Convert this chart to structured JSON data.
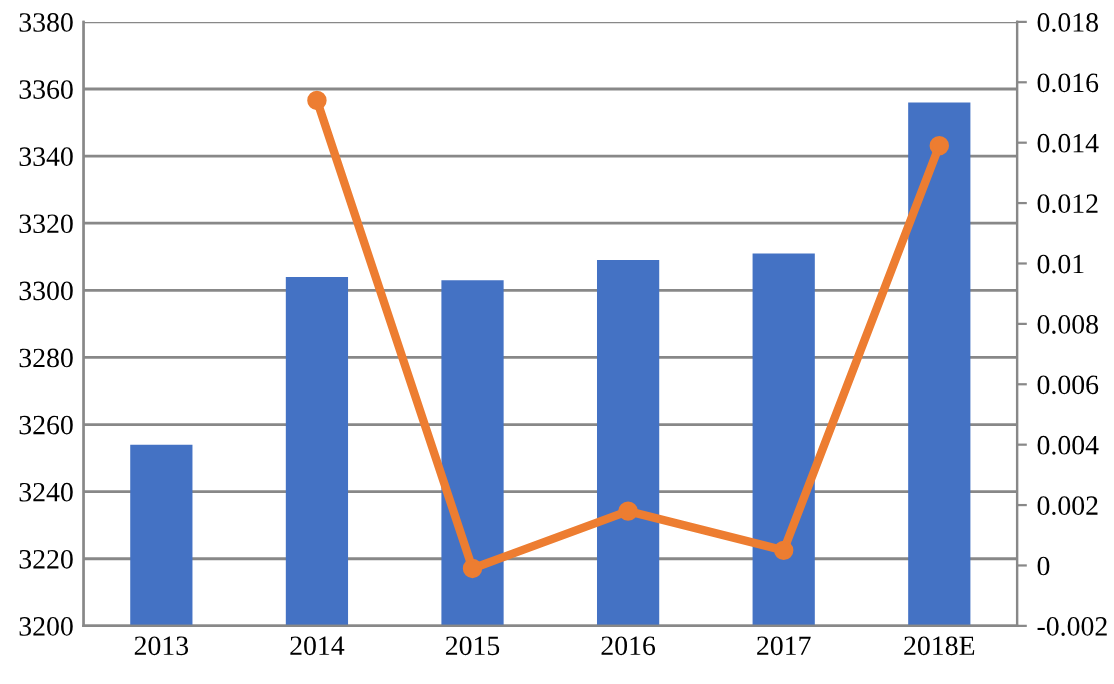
{
  "chart_data": {
    "type": "bar",
    "categories": [
      "2013",
      "2014",
      "2015",
      "2016",
      "2017",
      "2018E"
    ],
    "series": [
      {
        "color": "#4472c4",
        "values": [
          3254,
          3304,
          3303,
          3309,
          3311,
          3356
        ]
      },
      {
        "type": "line",
        "axis": "y2",
        "color": "#ed7d31",
        "marker": "circle",
        "values": [
          null,
          0.0154,
          -0.0001,
          0.0018,
          0.0005,
          0.0139
        ]
      }
    ],
    "ylim": [
      3200,
      3380
    ],
    "yticks": [
      3200,
      3220,
      3240,
      3260,
      3280,
      3300,
      3320,
      3340,
      3360,
      3380
    ],
    "y2lim": [
      -0.002,
      0.018
    ],
    "y2ticks": [
      -0.002,
      0,
      0.002,
      0.004,
      0.006,
      0.008,
      0.01,
      0.012,
      0.014,
      0.016,
      0.018
    ],
    "grid": "y",
    "legend": false
  }
}
